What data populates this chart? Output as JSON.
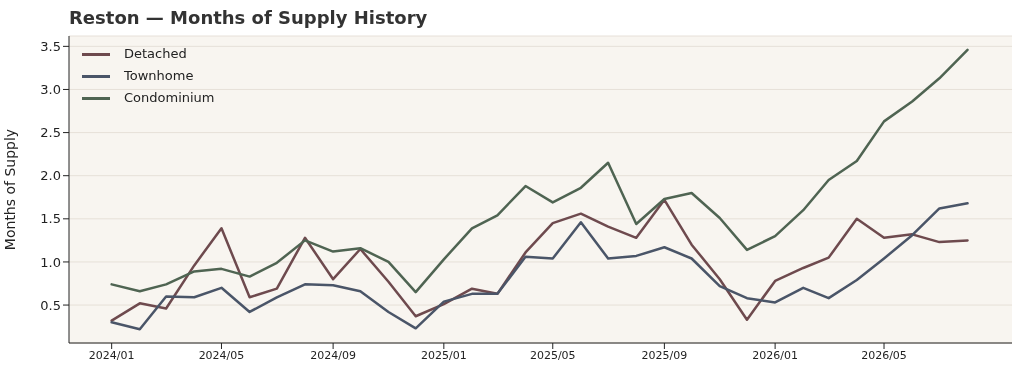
{
  "chart_data": {
    "type": "line",
    "title": "Reston — Months of Supply History",
    "ylabel": "Months of Supply",
    "x": [
      "2024-01",
      "2024-02",
      "2024-03",
      "2024-04",
      "2024-05",
      "2024-06",
      "2024-07",
      "2024-08",
      "2024-09",
      "2024-10",
      "2024-11",
      "2024-12",
      "2025-01",
      "2025-02",
      "2025-03",
      "2025-04",
      "2025-05",
      "2025-06",
      "2025-07",
      "2025-08",
      "2025-09",
      "2025-10",
      "2025-11",
      "2025-12",
      "2026-01",
      "2026-02",
      "2026-03",
      "2026-04",
      "2026-05",
      "2026-06",
      "2026-07",
      "2026-08"
    ],
    "series": [
      {
        "name": "Detached",
        "color": "#6e4a4e",
        "values": [
          0.32,
          0.52,
          0.46,
          0.96,
          1.39,
          0.59,
          0.69,
          1.28,
          0.8,
          1.15,
          0.77,
          0.37,
          0.51,
          0.69,
          0.63,
          1.11,
          1.45,
          1.56,
          1.41,
          1.28,
          1.72,
          1.2,
          0.8,
          0.33,
          0.78,
          0.93,
          1.05,
          1.5,
          1.28,
          1.32,
          1.23,
          1.25
        ]
      },
      {
        "name": "Townhome",
        "color": "#4a5568",
        "values": [
          0.3,
          0.22,
          0.6,
          0.59,
          0.7,
          0.42,
          0.59,
          0.74,
          0.73,
          0.66,
          0.42,
          0.23,
          0.54,
          0.63,
          0.63,
          1.06,
          1.04,
          1.46,
          1.04,
          1.07,
          1.17,
          1.04,
          0.72,
          0.58,
          0.53,
          0.7,
          0.58,
          0.79,
          1.04,
          1.31,
          1.62,
          1.68
        ]
      },
      {
        "name": "Condominium",
        "color": "#4f6452",
        "values": [
          0.74,
          0.66,
          0.74,
          0.89,
          0.92,
          0.83,
          0.99,
          1.25,
          1.12,
          1.16,
          1.0,
          0.65,
          1.03,
          1.39,
          1.54,
          1.88,
          1.69,
          1.86,
          2.15,
          1.44,
          1.73,
          1.8,
          1.51,
          1.14,
          1.3,
          1.6,
          1.95,
          2.17,
          2.63,
          2.86,
          3.13,
          3.46
        ]
      }
    ],
    "xlim": [
      "2023-11-15",
      "2026-09-19"
    ],
    "xticks": [
      {
        "value": "2024-01",
        "label": "2024/01"
      },
      {
        "value": "2024-05",
        "label": "2024/05"
      },
      {
        "value": "2024-09",
        "label": "2024/09"
      },
      {
        "value": "2025-01",
        "label": "2025/01"
      },
      {
        "value": "2025-05",
        "label": "2025/05"
      },
      {
        "value": "2025-09",
        "label": "2025/09"
      },
      {
        "value": "2026-01",
        "label": "2026/01"
      },
      {
        "value": "2026-05",
        "label": "2026/05"
      }
    ],
    "ylim": [
      0.06,
      3.62
    ],
    "yticks": [
      0.5,
      {
        "value": 1,
        "label": "1.0"
      },
      1.5,
      {
        "value": 2,
        "label": "2.0"
      },
      2.5,
      {
        "value": 3,
        "label": "3.0"
      },
      3.5
    ],
    "grid": "y",
    "legend": "top left",
    "marker": "none",
    "line_style": "solid"
  }
}
